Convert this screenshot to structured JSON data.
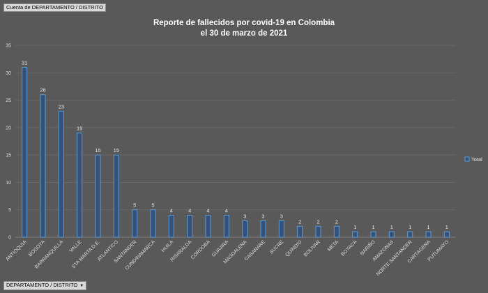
{
  "field_buttons": {
    "top_label": "Cuenta de DEPARTAMENTO / DISTRITO",
    "bottom_label": "DEPARTAMENTO / DISTRITO",
    "dropdown_glyph": "▼"
  },
  "chart_data": {
    "type": "bar",
    "title_line1": "Reporte de fallecidos por covid-19 en Colombia",
    "title_line2": "el 30 de marzo de 2021",
    "categories": [
      "ANTIOQUIA",
      "BOGOTA",
      "BARRANQUILLA",
      "VALLE",
      "STA MARTA D.E.",
      "ATLANTICO",
      "SANTANDER",
      "CUNDINAMARCA",
      "HUILA",
      "RISARALDA",
      "CORDOBA",
      "GUAJIRA",
      "MAGDALENA",
      "CASANARE",
      "SUCRE",
      "QUINDIO",
      "BOLIVAR",
      "META",
      "BOYACA",
      "NARIÑO",
      "AMAZONAS",
      "NORTE SANTANDER",
      "CARTAGENA",
      "PUTUMAYO"
    ],
    "series": [
      {
        "name": "Total",
        "values": [
          31,
          26,
          23,
          19,
          15,
          15,
          5,
          5,
          4,
          4,
          4,
          4,
          3,
          3,
          3,
          2,
          2,
          2,
          1,
          1,
          1,
          1,
          1,
          1
        ]
      }
    ],
    "ylim": [
      0,
      35
    ],
    "yticks": [
      0,
      5,
      10,
      15,
      20,
      25,
      30,
      35
    ],
    "grid": true,
    "legend_position": "right",
    "colors": {
      "bar_fill": "#35517a",
      "bar_stroke": "#5b9bd5",
      "gridline": "#6b6b6b",
      "axis": "#8a8a8a"
    }
  }
}
